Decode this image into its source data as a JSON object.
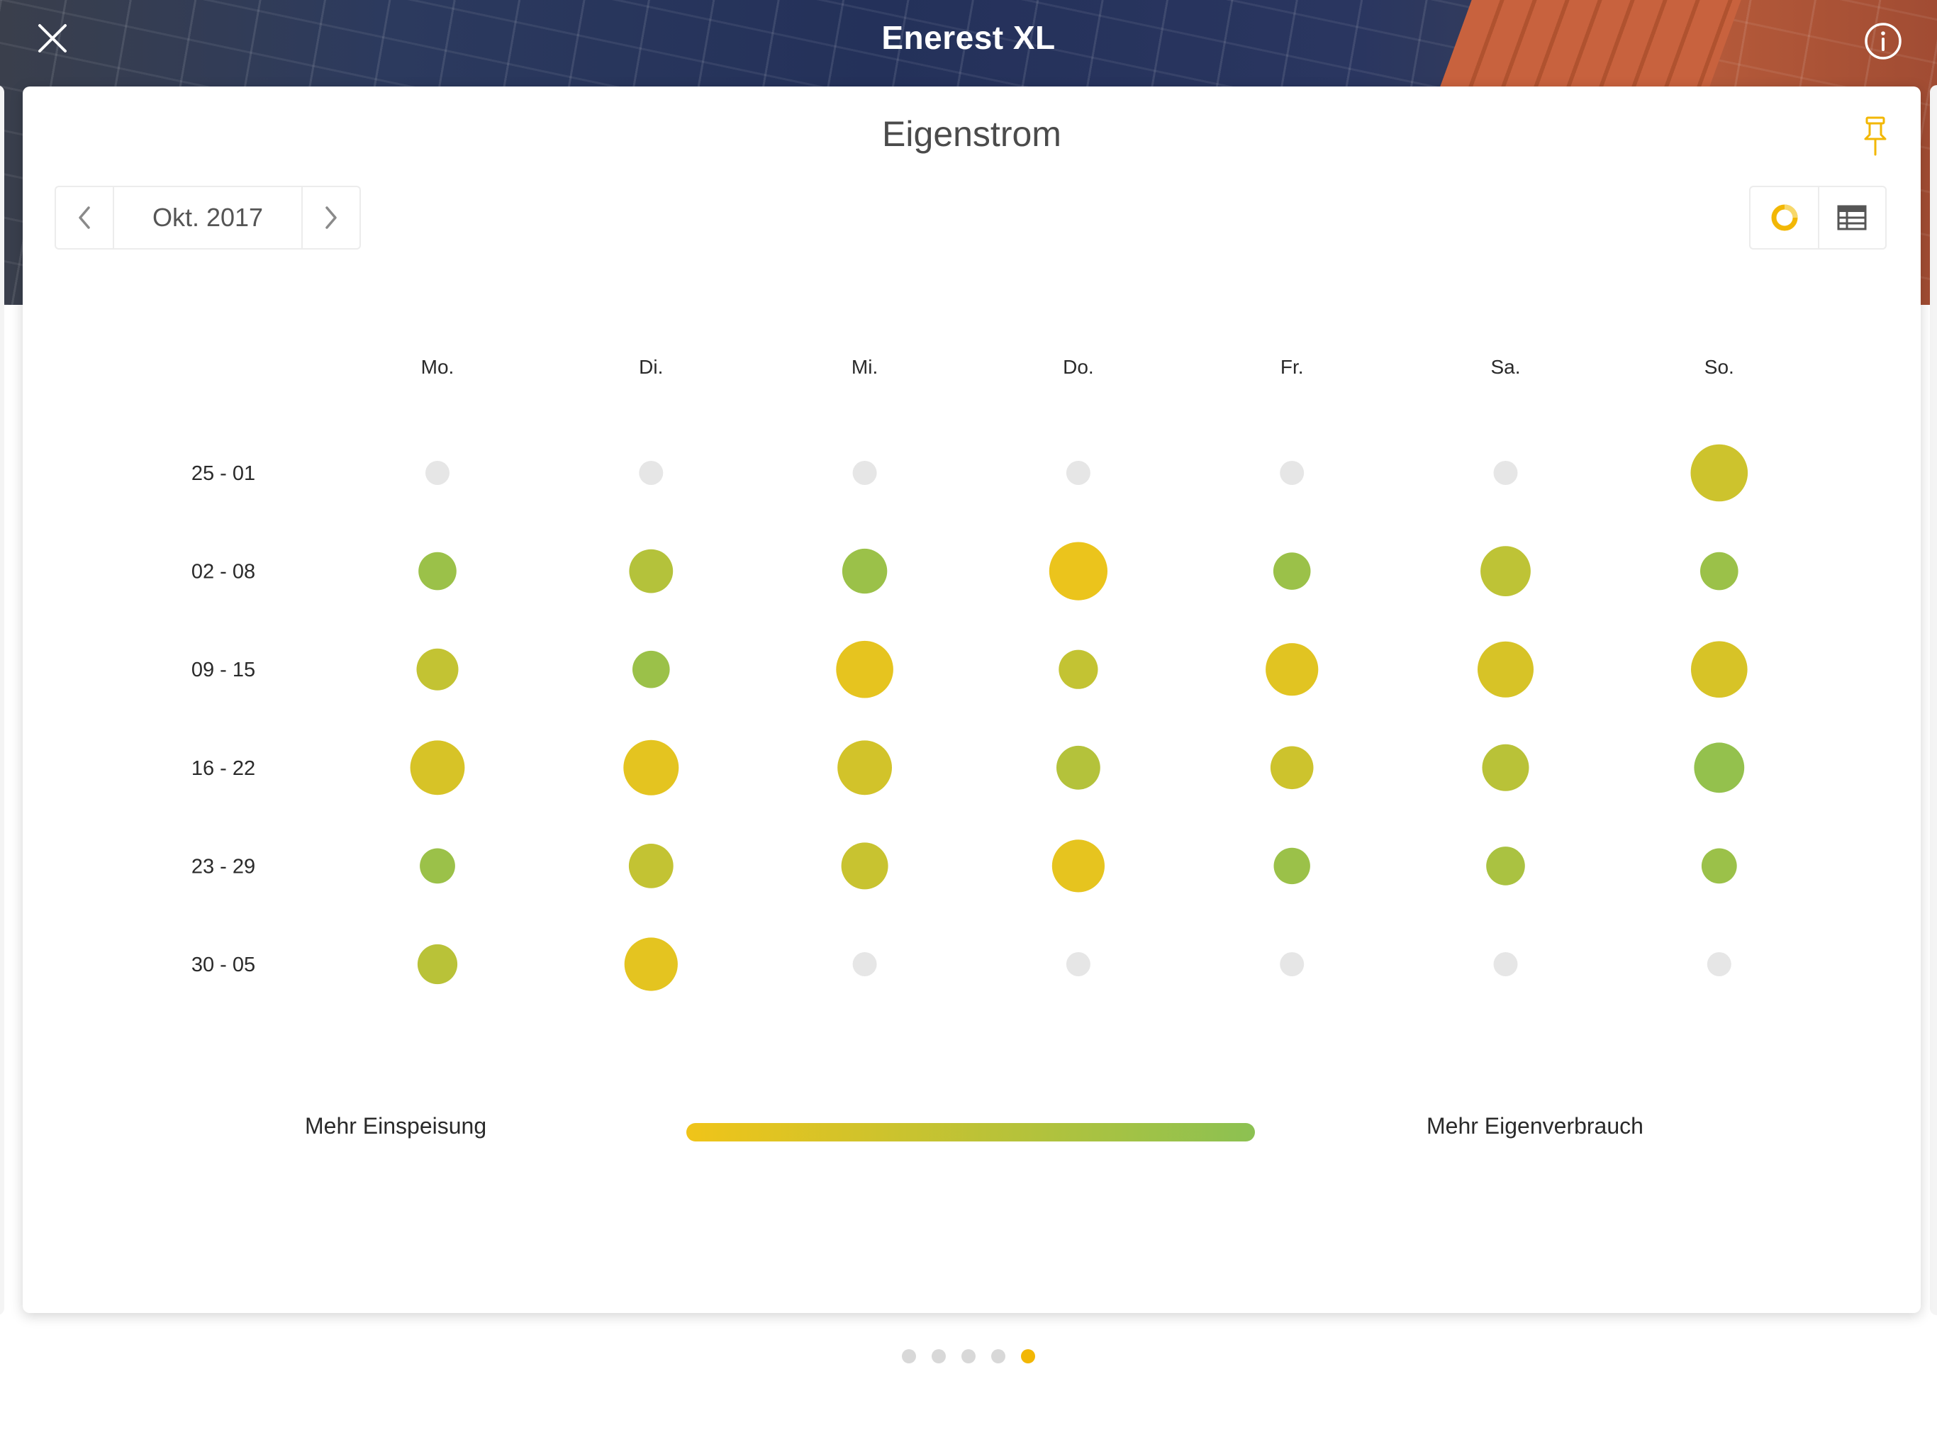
{
  "header": {
    "title": "Enerest XL"
  },
  "card": {
    "title": "Eigenstrom"
  },
  "month_nav": {
    "label": "Okt. 2017"
  },
  "colors": {
    "accent": "#f2b705",
    "empty_dot": "#e6e6e6",
    "scale_start": "#f0c419",
    "scale_end": "#8cc152"
  },
  "icons": {
    "close": "close-icon",
    "info": "info-icon",
    "pin": "pin-icon",
    "prev": "chevron-left-icon",
    "next": "chevron-right-icon",
    "donut_view": "donut-chart-icon",
    "table_view": "table-icon"
  },
  "chart_data": {
    "type": "heatmap",
    "columns": [
      "Mo.",
      "Di.",
      "Mi.",
      "Do.",
      "Fr.",
      "Sa.",
      "So."
    ],
    "rows": [
      "25 - 01",
      "02 - 08",
      "09 - 15",
      "16 - 22",
      "23 - 29",
      "30 - 05"
    ],
    "size_values": [
      [
        0,
        0,
        0,
        0,
        0,
        0,
        0.9
      ],
      [
        0.4,
        0.55,
        0.58,
        0.93,
        0.38,
        0.72,
        0.4
      ],
      [
        0.5,
        0.38,
        0.9,
        0.43,
        0.78,
        0.87,
        0.88
      ],
      [
        0.83,
        0.85,
        0.83,
        0.55,
        0.53,
        0.63,
        0.72
      ],
      [
        0.33,
        0.57,
        0.63,
        0.78,
        0.36,
        0.42,
        0.33
      ],
      [
        0.45,
        0.8,
        0,
        0,
        0,
        0,
        0
      ]
    ],
    "color_values": [
      [
        null,
        null,
        null,
        null,
        null,
        null,
        0.35
      ],
      [
        0.85,
        0.6,
        0.85,
        0.05,
        0.85,
        0.5,
        0.85
      ],
      [
        0.45,
        0.85,
        0.1,
        0.45,
        0.15,
        0.25,
        0.25
      ],
      [
        0.25,
        0.12,
        0.3,
        0.6,
        0.35,
        0.55,
        0.92
      ],
      [
        0.85,
        0.45,
        0.4,
        0.1,
        0.85,
        0.7,
        0.85
      ],
      [
        0.55,
        0.12,
        null,
        null,
        null,
        null,
        null
      ]
    ],
    "legend": {
      "left": "Mehr Einspeisung",
      "right": "Mehr Eigenverbrauch"
    }
  },
  "pager": {
    "count": 5,
    "active_index": 4
  }
}
